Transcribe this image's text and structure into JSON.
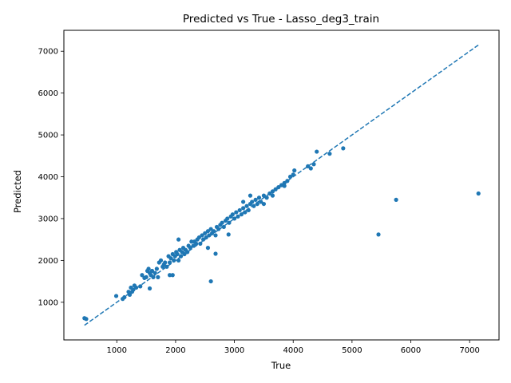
{
  "chart_data": {
    "type": "scatter",
    "title": "Predicted vs True - Lasso_deg3_train",
    "xlabel": "True",
    "ylabel": "Predicted",
    "xlim": [
      100,
      7500
    ],
    "ylim": [
      100,
      7500
    ],
    "xticks": [
      1000,
      2000,
      3000,
      4000,
      5000,
      6000,
      7000
    ],
    "yticks": [
      1000,
      2000,
      3000,
      4000,
      5000,
      6000,
      7000
    ],
    "grid": false,
    "colors": {
      "points": "#1f77b4",
      "reference_line": "#1f77b4"
    },
    "reference_line": {
      "style": "dashed",
      "from": [
        450,
        450
      ],
      "to": [
        7150,
        7150
      ]
    },
    "points": {
      "x": [
        450,
        480,
        990,
        1100,
        1130,
        1200,
        1220,
        1240,
        1260,
        1280,
        1300,
        1330,
        1400,
        1430,
        1470,
        1500,
        1520,
        1540,
        1560,
        1580,
        1600,
        1620,
        1650,
        1680,
        1700,
        1720,
        1750,
        1780,
        1800,
        1820,
        1850,
        1880,
        1900,
        1920,
        1950,
        1970,
        1990,
        2010,
        2030,
        2050,
        2070,
        2090,
        2110,
        2130,
        2150,
        2170,
        2200,
        2220,
        2250,
        2270,
        2300,
        2320,
        2350,
        2370,
        2400,
        2420,
        2450,
        2470,
        2500,
        2520,
        2550,
        2570,
        2600,
        2620,
        2650,
        2680,
        2700,
        2730,
        2760,
        2790,
        2820,
        2850,
        2880,
        2910,
        2940,
        2970,
        3000,
        3030,
        3060,
        3090,
        3120,
        3150,
        3180,
        3210,
        3240,
        3270,
        3300,
        3330,
        3360,
        3390,
        3420,
        3450,
        3500,
        3550,
        3600,
        3650,
        3700,
        3750,
        3800,
        3850,
        3900,
        3950,
        4000,
        4020,
        4250,
        4300,
        4350,
        4400,
        4620,
        4850,
        5450,
        5750,
        7150,
        2600,
        2680,
        2050,
        1560,
        1900,
        1950,
        2550,
        2900,
        3150,
        3270,
        3500,
        3650,
        3850
      ],
      "y": [
        620,
        600,
        1150,
        1080,
        1120,
        1250,
        1180,
        1350,
        1250,
        1300,
        1400,
        1350,
        1380,
        1650,
        1580,
        1600,
        1750,
        1800,
        1700,
        1650,
        1750,
        1600,
        1700,
        1800,
        1600,
        1950,
        2000,
        1850,
        1900,
        1950,
        1850,
        2100,
        1950,
        2050,
        2150,
        2000,
        2100,
        2200,
        2150,
        2000,
        2250,
        2100,
        2200,
        2300,
        2150,
        2250,
        2200,
        2350,
        2300,
        2450,
        2350,
        2450,
        2400,
        2500,
        2550,
        2400,
        2600,
        2500,
        2650,
        2550,
        2700,
        2600,
        2750,
        2650,
        2700,
        2600,
        2800,
        2750,
        2850,
        2900,
        2800,
        2950,
        3000,
        2900,
        3050,
        3100,
        3000,
        3150,
        3050,
        3200,
        3100,
        3250,
        3150,
        3300,
        3200,
        3350,
        3400,
        3300,
        3450,
        3350,
        3500,
        3400,
        3550,
        3500,
        3600,
        3650,
        3700,
        3750,
        3800,
        3850,
        3900,
        4000,
        4050,
        4150,
        4250,
        4200,
        4300,
        4600,
        4550,
        4680,
        2620,
        3450,
        3600,
        1500,
        2160,
        2500,
        1330,
        1650,
        1650,
        2300,
        2620,
        3400,
        3550,
        3350,
        3550,
        3780
      ]
    }
  }
}
